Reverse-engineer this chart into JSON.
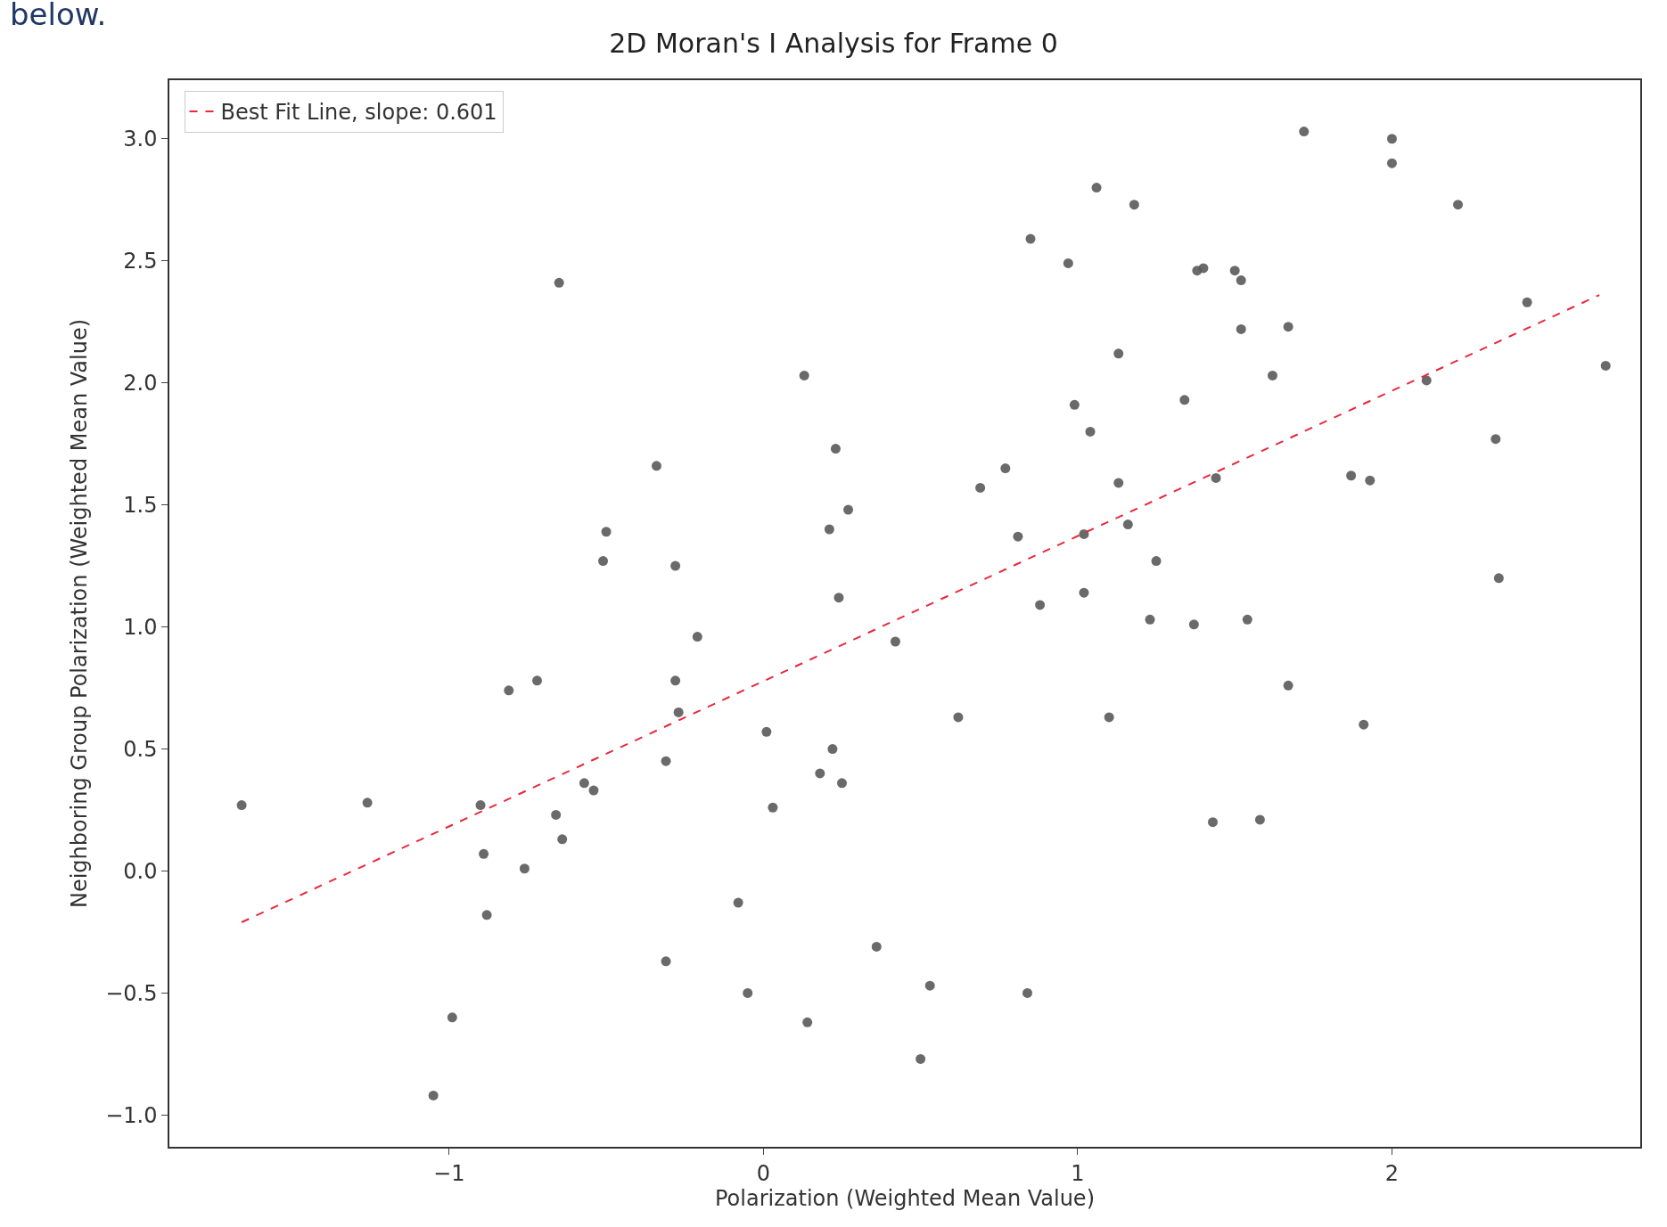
{
  "chart_data": {
    "type": "scatter",
    "title": "2D Moran's I Analysis for Frame 0",
    "xlabel": "Polarization (Weighted Mean Value)",
    "ylabel": "Neighboring Group Polarization (Weighted Mean Value)",
    "annotations": [
      "below."
    ],
    "xlim": [
      -1.89,
      2.79
    ],
    "ylim": [
      -1.13,
      3.24
    ],
    "xticks": [
      {
        "value": -1,
        "label": "−1"
      },
      0,
      1,
      2
    ],
    "yticks": [
      {
        "value": -1,
        "label": "−1.0"
      },
      {
        "value": -0.5,
        "label": "−0.5"
      },
      {
        "value": 0,
        "label": "0.0"
      },
      0.5,
      {
        "value": 1,
        "label": "1.0"
      },
      1.5,
      {
        "value": 2,
        "label": "2.0"
      },
      2.5,
      {
        "value": 3,
        "label": "3.0"
      }
    ],
    "grid": false,
    "legend": "top left",
    "series": [
      {
        "color": "#5a5a5a",
        "marker": "circle",
        "x": [
          -1.66,
          -1.26,
          -1.05,
          -0.99,
          -0.9,
          -0.89,
          -0.88,
          -0.81,
          -0.76,
          -0.72,
          -0.66,
          -0.64,
          -0.65,
          -0.57,
          -0.54,
          -0.5,
          -0.51,
          -0.34,
          -0.31,
          -0.31,
          -0.28,
          -0.28,
          -0.27,
          -0.21,
          -0.08,
          -0.05,
          0.01,
          0.03,
          0.13,
          0.14,
          0.18,
          0.21,
          0.22,
          0.23,
          0.24,
          0.25,
          0.27,
          0.36,
          0.42,
          0.5,
          0.53,
          0.62,
          0.69,
          0.77,
          0.81,
          0.84,
          0.85,
          0.88,
          0.97,
          0.99,
          1.02,
          1.02,
          1.04,
          1.06,
          1.1,
          1.13,
          1.13,
          1.16,
          1.18,
          1.23,
          1.25,
          1.34,
          1.37,
          1.38,
          1.4,
          1.43,
          1.44,
          1.5,
          1.52,
          1.52,
          1.54,
          1.58,
          1.62,
          1.67,
          1.67,
          1.72,
          1.87,
          1.91,
          1.93,
          2.0,
          2.0,
          2.11,
          2.21,
          2.33,
          2.34,
          2.43,
          2.68
        ],
        "values": [
          0.27,
          0.28,
          -0.92,
          -0.6,
          0.27,
          0.07,
          -0.18,
          0.74,
          0.01,
          0.78,
          0.23,
          0.13,
          2.41,
          0.36,
          0.33,
          1.39,
          1.27,
          1.66,
          0.45,
          -0.37,
          1.25,
          0.78,
          0.65,
          0.96,
          -0.13,
          -0.5,
          0.57,
          0.26,
          2.03,
          -0.62,
          0.4,
          1.4,
          0.5,
          1.73,
          1.12,
          0.36,
          1.48,
          -0.31,
          0.94,
          -0.77,
          -0.47,
          0.63,
          1.57,
          1.65,
          1.37,
          -0.5,
          2.59,
          1.09,
          2.49,
          1.91,
          1.14,
          1.38,
          1.8,
          2.8,
          0.63,
          2.12,
          1.59,
          1.42,
          2.73,
          1.03,
          1.27,
          1.93,
          1.01,
          2.46,
          2.47,
          0.2,
          1.61,
          2.46,
          2.42,
          2.22,
          1.03,
          0.21,
          2.03,
          2.23,
          0.76,
          3.03,
          1.62,
          0.6,
          1.6,
          3.0,
          2.9,
          2.01,
          2.73,
          1.77,
          1.2,
          2.33,
          2.07
        ]
      },
      {
        "type": "line",
        "name": "Best Fit Line, slope: 0.601",
        "color": "#e8283c",
        "line_style": "dashed",
        "x": [
          -1.66,
          2.66
        ],
        "values": [
          -0.21,
          2.36
        ]
      }
    ]
  }
}
